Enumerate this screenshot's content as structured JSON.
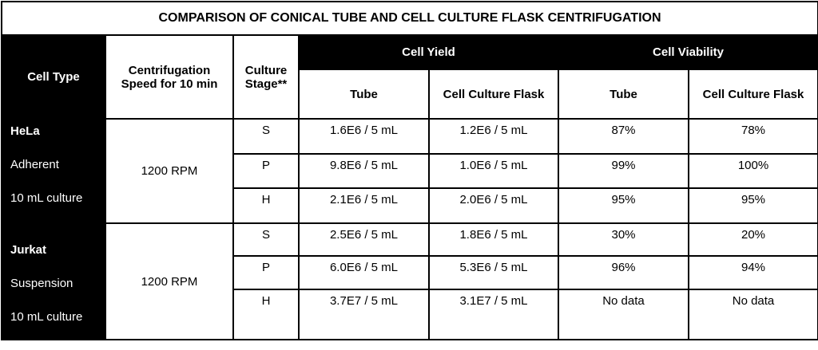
{
  "title": "COMPARISON OF CONICAL TUBE AND CELL CULTURE FLASK CENTRIFUGATION",
  "header": {
    "cell_type": "Cell Type",
    "speed": [
      "Centrifugation",
      "Speed for 10 min"
    ],
    "stage": [
      "Culture",
      "Stage**"
    ],
    "cell_yield": "Cell Yield",
    "cell_viability": "Cell Viability",
    "yield_cols": [
      "Tube",
      "Cell Culture Flask"
    ],
    "viability_cols": [
      "Tube",
      "Cell Culture Flask"
    ]
  },
  "groups": [
    {
      "name": "HeLa",
      "lines": [
        "Adherent",
        "10 mL culture"
      ],
      "speed": "1200 RPM",
      "rows": [
        [
          "S",
          "1.6E6 / 5 mL",
          "1.2E6 / 5 mL",
          "87%",
          "78%"
        ],
        [
          "P",
          "9.8E6 / 5 mL",
          "1.0E6 / 5 mL",
          "99%",
          "100%"
        ],
        [
          "H",
          "2.1E6 / 5 mL",
          "2.0E6 / 5 mL",
          "95%",
          "95%"
        ]
      ]
    },
    {
      "name": "Jurkat",
      "lines": [
        "Suspension",
        "10 mL culture"
      ],
      "speed": "1200 RPM",
      "rows": [
        [
          "S",
          "2.5E6 / 5 mL",
          "1.8E6 / 5 mL",
          "30%",
          "20%"
        ],
        [
          "P",
          "6.0E6 / 5 mL",
          "5.3E6 / 5 mL",
          "96%",
          "94%"
        ],
        [
          "H",
          "3.7E7 / 5 mL",
          "3.1E7 / 5 mL",
          "No data",
          "No data"
        ]
      ]
    }
  ]
}
